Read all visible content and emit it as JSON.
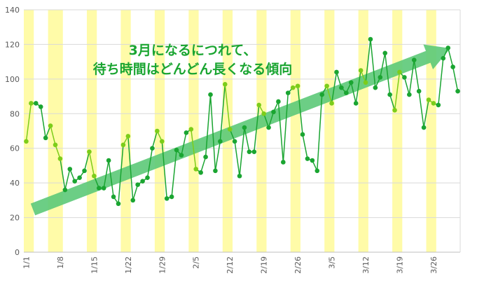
{
  "chart_data": {
    "type": "line",
    "title": "",
    "xlabel": "",
    "ylabel": "",
    "ylim": [
      0,
      140
    ],
    "yticks": [
      0,
      20,
      40,
      60,
      80,
      100,
      120,
      140
    ],
    "grid": {
      "horizontal": true,
      "vertical": false
    },
    "legend": "none",
    "x_tick_labels": [
      "1/1",
      "1/8",
      "1/15",
      "1/22",
      "1/29",
      "2/5",
      "2/12",
      "2/19",
      "2/26",
      "3/5",
      "3/12",
      "3/19",
      "3/26"
    ],
    "x_tick_days": [
      1,
      8,
      15,
      22,
      29,
      36,
      43,
      50,
      57,
      64,
      71,
      78,
      85
    ],
    "weekend_days": [
      1,
      2,
      6,
      7,
      8,
      14,
      15,
      21,
      22,
      28,
      29,
      35,
      36,
      42,
      43,
      49,
      50,
      56,
      57,
      63,
      64,
      70,
      71,
      77,
      78,
      84,
      85
    ],
    "series": [
      {
        "values": [
          64,
          86,
          86,
          84,
          66,
          73,
          62,
          54,
          36,
          48,
          41,
          43,
          47,
          58,
          44,
          37,
          37,
          53,
          32,
          28,
          62,
          67,
          30,
          39,
          41,
          43,
          60,
          70,
          64,
          31,
          32,
          59,
          56,
          69,
          71,
          48,
          46,
          55,
          91,
          47,
          64,
          97,
          71,
          64,
          44,
          72,
          58,
          58,
          85,
          80,
          72,
          81,
          87,
          52,
          92,
          95,
          96,
          68,
          54,
          53,
          47,
          91,
          96,
          86,
          104,
          95,
          92,
          98,
          86,
          105,
          98,
          123,
          95,
          101,
          115,
          91,
          82,
          104,
          101,
          91,
          111,
          93,
          72,
          88,
          86,
          85,
          112,
          118,
          107,
          93
        ]
      }
    ],
    "annotation": {
      "lines": [
        "3月になるにつれて、",
        "待ち時間はどんどん長くなる傾向"
      ]
    },
    "colors": {
      "line_weekday": "#1aa531",
      "line_weekend": "#7ccd1a",
      "marker_weekday": "#1aa531",
      "marker_weekend": "#7ccd1a",
      "weekend_band": "#fffba8",
      "trend_arrow": "#5cc978",
      "grid": "#d9d9d9",
      "annotation_text": "#1aa531"
    }
  }
}
